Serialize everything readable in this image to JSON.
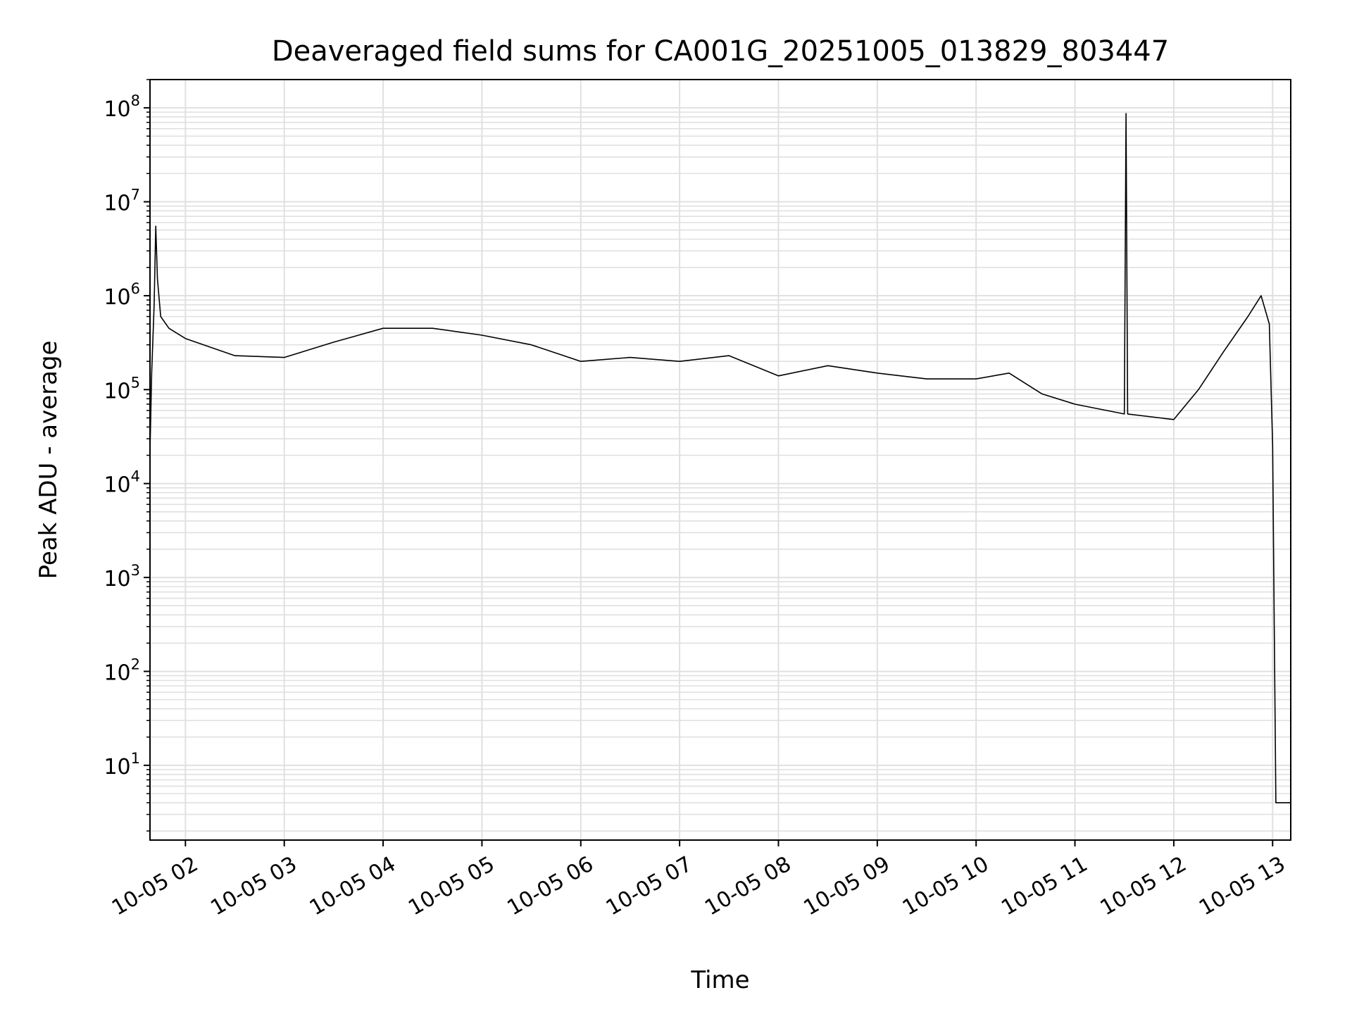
{
  "chart_data": {
    "type": "line",
    "title": "Deaveraged field sums for CA001G_20251005_013829_803447",
    "xlabel": "Time",
    "ylabel": "Peak ADU - average",
    "y_scale": "log",
    "ylim": [
      1.6,
      200000000
    ],
    "xlim": [
      "2025-10-05 01:38:29",
      "2025-10-05 13:11:00"
    ],
    "grid": true,
    "line_color": "#000000",
    "grid_color": "#e0e0e0",
    "x_ticks": [
      {
        "t": "2025-10-05 02:00",
        "label": "10-05 02"
      },
      {
        "t": "2025-10-05 03:00",
        "label": "10-05 03"
      },
      {
        "t": "2025-10-05 04:00",
        "label": "10-05 04"
      },
      {
        "t": "2025-10-05 05:00",
        "label": "10-05 05"
      },
      {
        "t": "2025-10-05 06:00",
        "label": "10-05 06"
      },
      {
        "t": "2025-10-05 07:00",
        "label": "10-05 07"
      },
      {
        "t": "2025-10-05 08:00",
        "label": "10-05 08"
      },
      {
        "t": "2025-10-05 09:00",
        "label": "10-05 09"
      },
      {
        "t": "2025-10-05 10:00",
        "label": "10-05 10"
      },
      {
        "t": "2025-10-05 11:00",
        "label": "10-05 11"
      },
      {
        "t": "2025-10-05 12:00",
        "label": "10-05 12"
      },
      {
        "t": "2025-10-05 13:00",
        "label": "10-05 13"
      }
    ],
    "y_ticks": [
      {
        "value": 10,
        "base": "10",
        "exp": "1"
      },
      {
        "value": 100,
        "base": "10",
        "exp": "2"
      },
      {
        "value": 1000,
        "base": "10",
        "exp": "3"
      },
      {
        "value": 10000,
        "base": "10",
        "exp": "4"
      },
      {
        "value": 100000,
        "base": "10",
        "exp": "5"
      },
      {
        "value": 1000000,
        "base": "10",
        "exp": "6"
      },
      {
        "value": 10000000,
        "base": "10",
        "exp": "7"
      },
      {
        "value": 100000000,
        "base": "10",
        "exp": "8"
      }
    ],
    "series": [
      {
        "points": [
          [
            "2025-10-05 01:38:29",
            22000
          ],
          [
            "2025-10-05 01:39:30",
            150000
          ],
          [
            "2025-10-05 01:41:00",
            800000
          ],
          [
            "2025-10-05 01:42:00",
            5500000
          ],
          [
            "2025-10-05 01:43:00",
            1500000
          ],
          [
            "2025-10-05 01:45:00",
            600000
          ],
          [
            "2025-10-05 01:50:00",
            450000
          ],
          [
            "2025-10-05 02:00",
            350000
          ],
          [
            "2025-10-05 02:30",
            230000
          ],
          [
            "2025-10-05 03:00",
            220000
          ],
          [
            "2025-10-05 03:30",
            320000
          ],
          [
            "2025-10-05 04:00",
            450000
          ],
          [
            "2025-10-05 04:30",
            450000
          ],
          [
            "2025-10-05 05:00",
            380000
          ],
          [
            "2025-10-05 05:30",
            300000
          ],
          [
            "2025-10-05 06:00",
            200000
          ],
          [
            "2025-10-05 06:30",
            220000
          ],
          [
            "2025-10-05 07:00",
            200000
          ],
          [
            "2025-10-05 07:30",
            230000
          ],
          [
            "2025-10-05 08:00",
            140000
          ],
          [
            "2025-10-05 08:30",
            180000
          ],
          [
            "2025-10-05 09:00",
            150000
          ],
          [
            "2025-10-05 09:30",
            130000
          ],
          [
            "2025-10-05 10:00",
            130000
          ],
          [
            "2025-10-05 10:20",
            150000
          ],
          [
            "2025-10-05 10:40",
            90000
          ],
          [
            "2025-10-05 11:00",
            70000
          ],
          [
            "2025-10-05 11:30",
            55000
          ],
          [
            "2025-10-05 11:31",
            87000000
          ],
          [
            "2025-10-05 11:32",
            55000
          ],
          [
            "2025-10-05 12:00",
            48000
          ],
          [
            "2025-10-05 12:15",
            100000
          ],
          [
            "2025-10-05 12:30",
            250000
          ],
          [
            "2025-10-05 12:45",
            600000
          ],
          [
            "2025-10-05 12:53",
            1000000
          ],
          [
            "2025-10-05 12:58",
            500000
          ],
          [
            "2025-10-05 13:00",
            25000
          ],
          [
            "2025-10-05 13:01",
            300
          ],
          [
            "2025-10-05 13:02",
            4
          ],
          [
            "2025-10-05 13:11",
            4
          ]
        ]
      }
    ]
  }
}
